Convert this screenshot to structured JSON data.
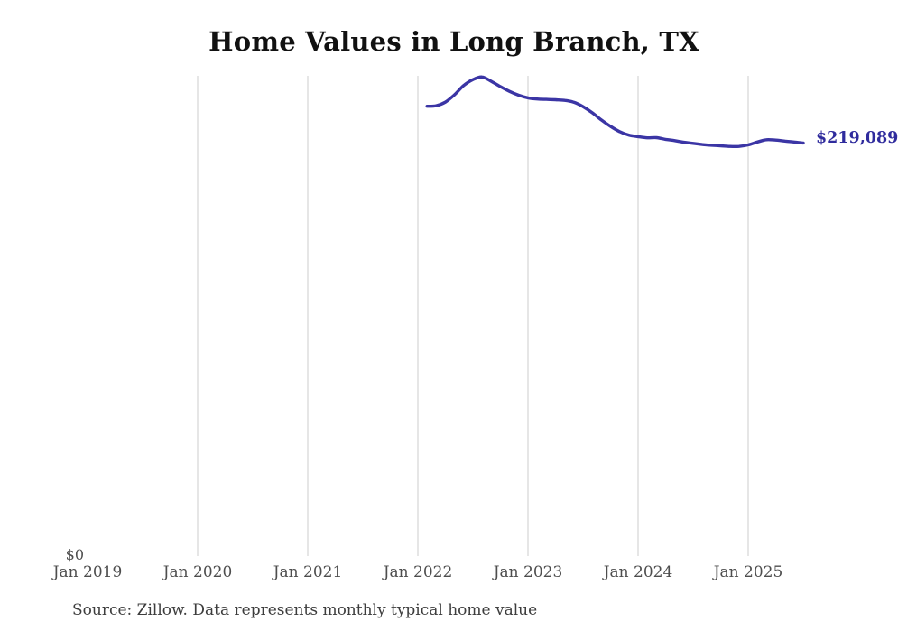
{
  "chart_data": {
    "type": "line",
    "title": "Home Values in Long Branch, TX",
    "source_note": "Source: Zillow. Data represents monthly typical home value",
    "x_tick_labels": [
      "Jan 2019",
      "Jan 2020",
      "Jan 2021",
      "Jan 2022",
      "Jan 2023",
      "Jan 2024",
      "Jan 2025"
    ],
    "y_zero_label": "$0",
    "end_label": "$219,089",
    "latest_value": 219089,
    "line_color": "#3b35a5",
    "end_label_color": "#2f2b9d",
    "grid_color": "#cccccc",
    "ylim": [
      0,
      254400
    ],
    "grid": true,
    "legend": "none",
    "series": [
      {
        "name": "Monthly typical home value",
        "months": [
          "2022-02",
          "2022-03",
          "2022-04",
          "2022-05",
          "2022-06",
          "2022-07",
          "2022-08",
          "2022-09",
          "2022-10",
          "2022-11",
          "2022-12",
          "2023-01",
          "2023-02",
          "2023-03",
          "2023-04",
          "2023-05",
          "2023-06",
          "2023-07",
          "2023-08",
          "2023-09",
          "2023-10",
          "2023-11",
          "2023-12",
          "2024-01",
          "2024-02",
          "2024-03",
          "2024-04",
          "2024-05",
          "2024-06",
          "2024-07",
          "2024-08",
          "2024-09",
          "2024-10",
          "2024-11",
          "2024-12",
          "2025-01",
          "2025-02",
          "2025-03",
          "2025-04",
          "2025-05",
          "2025-06",
          "2025-07"
        ],
        "values": [
          238400,
          238700,
          240600,
          244500,
          249300,
          252400,
          253800,
          251500,
          248700,
          246200,
          244200,
          242800,
          242200,
          242000,
          241800,
          241500,
          240500,
          238200,
          235000,
          231200,
          227800,
          225000,
          223200,
          222400,
          221800,
          221900,
          221000,
          220300,
          219500,
          218900,
          218300,
          217900,
          217600,
          217300,
          217300,
          218100,
          219600,
          220800,
          220600,
          220100,
          219600,
          219089
        ]
      }
    ]
  }
}
